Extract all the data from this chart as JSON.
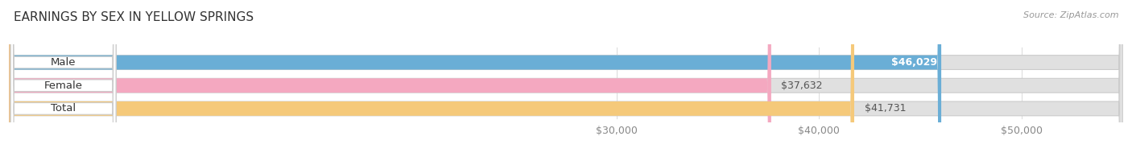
{
  "title": "EARNINGS BY SEX IN YELLOW SPRINGS",
  "source": "Source: ZipAtlas.com",
  "categories": [
    "Male",
    "Female",
    "Total"
  ],
  "values": [
    46029,
    37632,
    41731
  ],
  "bar_colors": [
    "#6aaed6",
    "#f4a8c0",
    "#f5c97a"
  ],
  "bar_bg_color": "#e0e0e0",
  "value_labels": [
    "$46,029",
    "$37,632",
    "$41,731"
  ],
  "x_tick_labels": [
    "$30,000",
    "$40,000",
    "$50,000"
  ],
  "x_tick_values": [
    30000,
    40000,
    50000
  ],
  "xmin": 0,
  "xmax": 55000,
  "title_fontsize": 11,
  "tick_fontsize": 9,
  "value_fontsize": 9,
  "label_fontsize": 9.5,
  "background_color": "#ffffff",
  "title_color": "#333333",
  "source_color": "#999999",
  "value_text_color": "#555555",
  "tick_color": "#888888"
}
